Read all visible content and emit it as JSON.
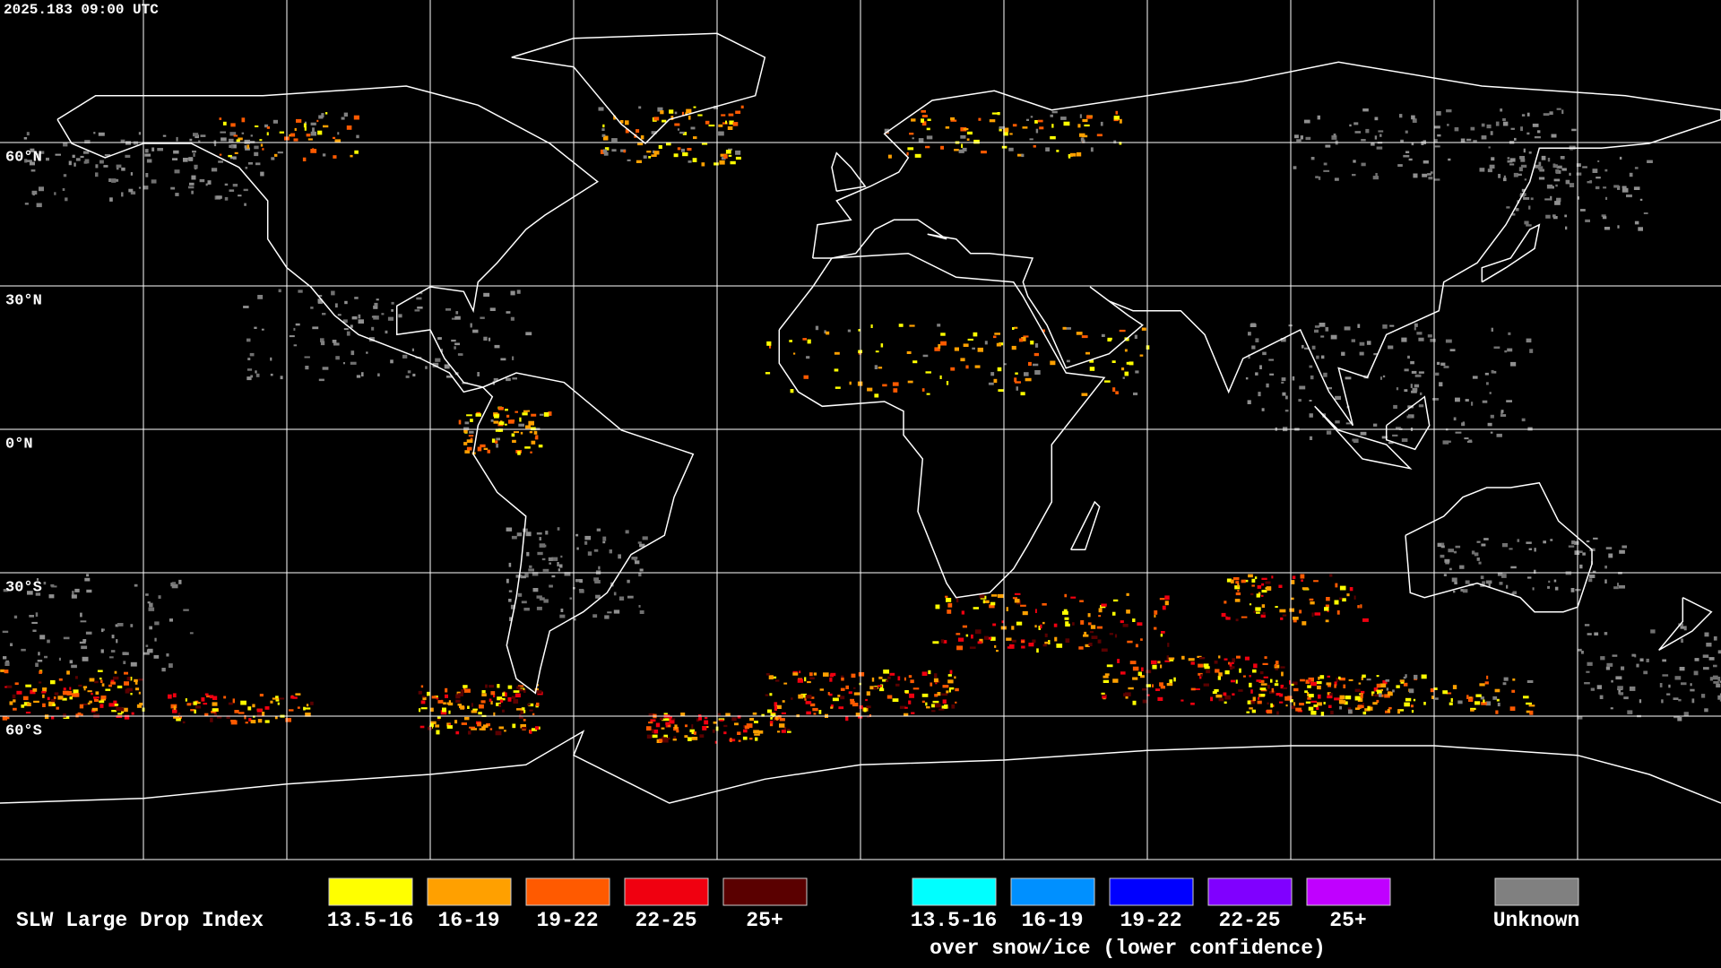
{
  "timestamp": "2025.183 09:00 UTC",
  "latitude_labels": [
    "60°N",
    "30°N",
    "0°N",
    "30°S",
    "60°S"
  ],
  "legend": {
    "title": "SLW Large Drop Index",
    "items": [
      {
        "label": "13.5-16",
        "color": "#ffff00"
      },
      {
        "label": "16-19",
        "color": "#ffa000"
      },
      {
        "label": "19-22",
        "color": "#ff5a00"
      },
      {
        "label": "22-25",
        "color": "#f00010"
      },
      {
        "label": "25+",
        "color": "#5a0000"
      }
    ],
    "snow_items": [
      {
        "label": "13.5-16",
        "color": "#00ffff"
      },
      {
        "label": "16-19",
        "color": "#0090ff"
      },
      {
        "label": "19-22",
        "color": "#0000ff"
      },
      {
        "label": "22-25",
        "color": "#8000ff"
      },
      {
        "label": "25+",
        "color": "#c000ff"
      }
    ],
    "snow_caption": "over snow/ice (lower confidence)",
    "unknown": {
      "label": "Unknown",
      "color": "#808080"
    }
  }
}
